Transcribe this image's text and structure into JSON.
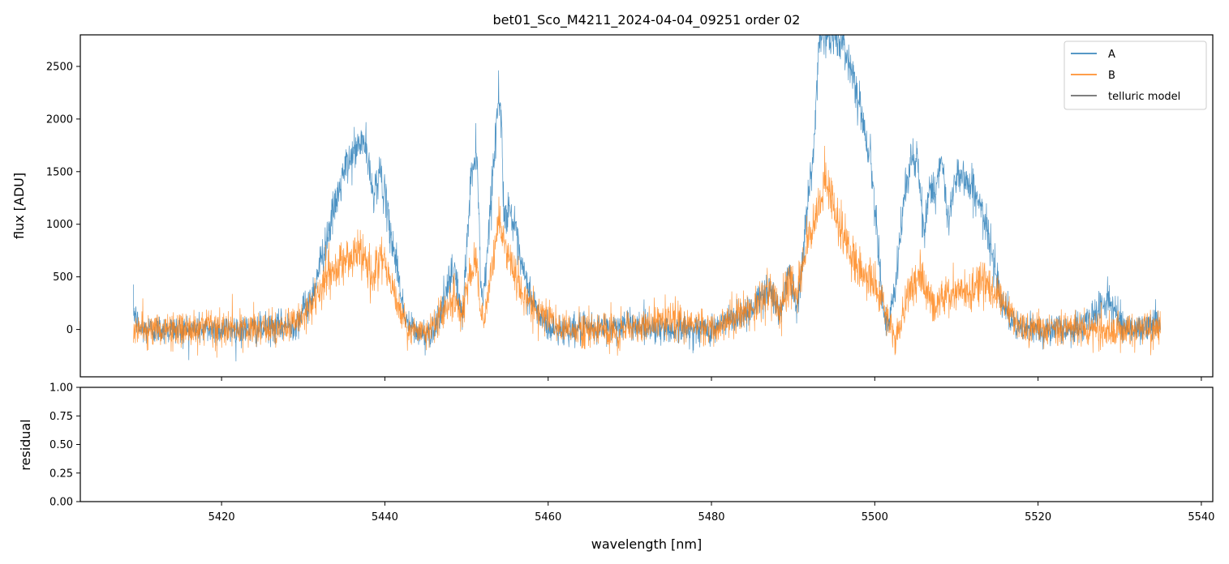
{
  "chart_data": [
    {
      "type": "line",
      "title": "bet01_Sco_M4211_2024-04-04_09251  order 02",
      "xlabel": "",
      "ylabel": "flux [ADU]",
      "xlim": [
        5402.7,
        5541.4
      ],
      "ylim": [
        -450,
        2800
      ],
      "yticks": [
        0,
        500,
        1000,
        1500,
        2000,
        2500
      ],
      "legend": {
        "position": "top-right",
        "entries": [
          {
            "name": "A",
            "color": "#1f77b4"
          },
          {
            "name": "B",
            "color": "#ff7f0e"
          },
          {
            "name": "telluric model",
            "color": "#555555"
          }
        ]
      },
      "series": [
        {
          "name": "A",
          "color": "#1f77b4",
          "noise": 95,
          "x": [
            5409.2,
            5409.6,
            5410,
            5415,
            5420,
            5425,
            5429,
            5431,
            5433,
            5435,
            5436.5,
            5437.5,
            5438.5,
            5439.5,
            5440.5,
            5441.5,
            5442.5,
            5443.5,
            5444.5,
            5446,
            5447.5,
            5448.5,
            5449.5,
            5450.5,
            5451.3,
            5451.7,
            5452.1,
            5453.9,
            5454.3,
            5454.6,
            5455.2,
            5456,
            5456.7,
            5457.5,
            5458.5,
            5459.5,
            5460.5,
            5462,
            5465,
            5470,
            5475,
            5480,
            5485,
            5487,
            5488.5,
            5489.5,
            5490.5,
            5491.5,
            5492.5,
            5493.2,
            5493.9,
            5494.6,
            5495.5,
            5496,
            5496.6,
            5497.5,
            5498.5,
            5499.5,
            5500.5,
            5501,
            5501.5,
            5502.5,
            5503.5,
            5504.5,
            5505.3,
            5506,
            5506.8,
            5507.4,
            5508.2,
            5509,
            5509.8,
            5510.4,
            5511.3,
            5512.4,
            5513.5,
            5514.5,
            5515.5,
            5516.5,
            5517.5,
            5518.5,
            5520,
            5522,
            5525,
            5527,
            5528.5,
            5529.5,
            5531,
            5533,
            5535
          ],
          "values": [
            200,
            80,
            0,
            0,
            0,
            0,
            50,
            300,
            900,
            1500,
            1720,
            1800,
            1300,
            1500,
            1000,
            600,
            80,
            0,
            -60,
            0,
            320,
            600,
            80,
            1400,
            1750,
            500,
            300,
            2200,
            2000,
            1000,
            1200,
            900,
            600,
            400,
            200,
            50,
            0,
            0,
            0,
            50,
            0,
            0,
            200,
            400,
            150,
            600,
            200,
            1000,
            1650,
            2800,
            2800,
            2750,
            2800,
            2700,
            2600,
            2400,
            2000,
            1600,
            800,
            200,
            0,
            350,
            1200,
            1650,
            1550,
            900,
            1400,
            1300,
            1600,
            1000,
            1450,
            1500,
            1400,
            1300,
            1000,
            700,
            300,
            100,
            0,
            0,
            0,
            0,
            0,
            150,
            300,
            150,
            0,
            0,
            100
          ]
        },
        {
          "name": "B",
          "color": "#ff7f0e",
          "noise": 110,
          "x": [
            5409.2,
            5415,
            5420,
            5425,
            5429,
            5431,
            5433,
            5435,
            5437,
            5438.5,
            5439.5,
            5440.5,
            5441.5,
            5443,
            5445,
            5447.5,
            5448.5,
            5449.5,
            5450.5,
            5451.3,
            5451.7,
            5452.1,
            5453.9,
            5454.3,
            5455,
            5456,
            5457,
            5458.5,
            5460,
            5462,
            5465,
            5470,
            5475,
            5480,
            5485,
            5487,
            5488.5,
            5489.5,
            5490.5,
            5491.5,
            5492.5,
            5493.5,
            5494,
            5494.3,
            5496,
            5496.5,
            5497.5,
            5499,
            5500.5,
            5501.5,
            5502.5,
            5503.5,
            5504.5,
            5505.5,
            5506.5,
            5507.5,
            5508.5,
            5509.5,
            5510.5,
            5511.5,
            5512.5,
            5513.5,
            5514.5,
            5515.5,
            5516.5,
            5518,
            5520,
            5525,
            5530,
            5535
          ],
          "values": [
            0,
            0,
            0,
            0,
            40,
            200,
            500,
            650,
            750,
            500,
            700,
            500,
            250,
            0,
            -50,
            200,
            300,
            80,
            600,
            700,
            100,
            50,
            1000,
            950,
            700,
            500,
            300,
            200,
            80,
            0,
            0,
            0,
            100,
            0,
            200,
            400,
            150,
            500,
            250,
            800,
            1000,
            1200,
            1450,
            1350,
            900,
            800,
            650,
            550,
            400,
            100,
            -100,
            150,
            450,
            500,
            350,
            200,
            300,
            350,
            400,
            300,
            450,
            450,
            350,
            300,
            150,
            0,
            0,
            0,
            0,
            0
          ]
        },
        {
          "name": "telluric model",
          "color": "#555555",
          "x": [],
          "values": []
        }
      ]
    },
    {
      "type": "line",
      "title": "",
      "xlabel": "wavelength [nm]",
      "ylabel": "residual",
      "xlim": [
        5402.7,
        5541.4
      ],
      "ylim": [
        0,
        1
      ],
      "yticks": [
        "0.00",
        "0.25",
        "0.50",
        "0.75",
        "1.00"
      ],
      "series": []
    }
  ],
  "xticks": [
    5420,
    5440,
    5460,
    5480,
    5500,
    5520,
    5540
  ]
}
